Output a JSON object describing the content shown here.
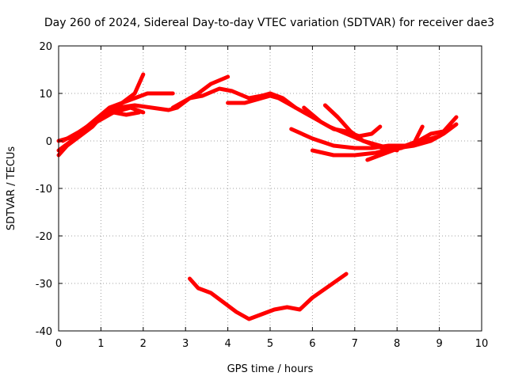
{
  "chart_data": {
    "type": "line",
    "title": "Day 260 of 2024, Sidereal Day-to-day VTEC variation (SDTVAR) for receiver dae3",
    "xlabel": "GPS time / hours",
    "ylabel": "SDTVAR / TECUs",
    "xlim": [
      0,
      10
    ],
    "ylim": [
      -40,
      20
    ],
    "xticks": [
      "0",
      "1",
      "2",
      "3",
      "4",
      "5",
      "6",
      "7",
      "8",
      "9",
      "10"
    ],
    "yticks": [
      "-40",
      "-30",
      "-20",
      "-10",
      "0",
      "10",
      "20"
    ],
    "grid": true,
    "legend": "none",
    "color": "#ff0000",
    "series": [
      {
        "x": [
          0,
          0.2,
          0.5,
          0.8,
          1.0,
          1.3,
          1.5
        ],
        "y": [
          -3,
          -1,
          1,
          3,
          5,
          6,
          7
        ]
      },
      {
        "x": [
          0,
          0.3,
          0.6,
          0.9,
          1.2,
          1.5,
          1.8,
          2.0
        ],
        "y": [
          -2,
          0,
          2,
          4,
          6,
          8,
          10,
          14
        ]
      },
      {
        "x": [
          0,
          0.4,
          0.8,
          1.2,
          1.5,
          1.8,
          2.1,
          2.4,
          2.7
        ],
        "y": [
          0,
          1,
          4,
          7,
          8,
          9,
          10,
          10,
          10
        ]
      },
      {
        "x": [
          0.1,
          0.5,
          1.0,
          1.4,
          1.8,
          2.2,
          2.6,
          2.8
        ],
        "y": [
          0,
          2,
          5,
          7,
          7.5,
          7,
          6.5,
          7
        ]
      },
      {
        "x": [
          0.5,
          0.9,
          1.3,
          1.7,
          2.0
        ],
        "y": [
          2,
          4,
          6,
          7,
          6
        ]
      },
      {
        "x": [
          1.3,
          1.6,
          1.9
        ],
        "y": [
          6,
          5.5,
          6
        ]
      },
      {
        "x": [
          2.7,
          3.0,
          3.3,
          3.6,
          4.0
        ],
        "y": [
          7,
          8.5,
          10,
          12,
          13.5
        ]
      },
      {
        "x": [
          2.8,
          3.1,
          3.4,
          3.8,
          4.1,
          4.5,
          4.8,
          5.0,
          5.2,
          5.4,
          5.6
        ],
        "y": [
          7,
          9,
          9.5,
          11,
          10.5,
          9,
          9.5,
          10,
          9,
          8,
          7
        ]
      },
      {
        "x": [
          4.0,
          4.4,
          4.8,
          5.0,
          5.2
        ],
        "y": [
          8,
          8,
          9,
          9.5,
          9
        ]
      },
      {
        "x": [
          5.0,
          5.3,
          5.6,
          6.0,
          6.4,
          6.8,
          7.2,
          7.6,
          8.0
        ],
        "y": [
          10,
          9,
          7,
          5,
          3,
          1.5,
          0,
          -1,
          -2
        ]
      },
      {
        "x": [
          5.5,
          6.0,
          6.5,
          7.0,
          7.4,
          7.8,
          8.2,
          8.6,
          9.0,
          9.3
        ],
        "y": [
          2.5,
          0.5,
          -1,
          -1.5,
          -1.5,
          -1,
          -1,
          0,
          1,
          3
        ]
      },
      {
        "x": [
          6.0,
          6.5,
          7.0,
          7.5,
          8.0,
          8.4,
          8.8,
          9.1,
          9.4
        ],
        "y": [
          -2,
          -3,
          -3,
          -2.5,
          -1.5,
          -1,
          0,
          1.5,
          3.5
        ]
      },
      {
        "x": [
          5.8,
          6.2,
          6.5,
          6.8,
          7.1,
          7.4,
          7.6
        ],
        "y": [
          7,
          4,
          2.5,
          2,
          1,
          1.5,
          3
        ]
      },
      {
        "x": [
          6.3,
          6.6,
          6.9,
          7.2,
          7.5,
          7.8,
          8.1,
          8.4,
          8.6
        ],
        "y": [
          7.5,
          5,
          2,
          0,
          -1,
          -2,
          -1.5,
          -0.5,
          3
        ]
      },
      {
        "x": [
          7.3,
          7.6,
          7.9,
          8.2,
          8.5,
          8.8,
          9.1,
          9.4
        ],
        "y": [
          -4,
          -3,
          -2,
          -1,
          0,
          1.5,
          2,
          5
        ]
      },
      {
        "x": [
          3.1,
          3.3,
          3.6,
          3.9,
          4.2,
          4.5,
          4.8,
          5.1,
          5.4,
          5.7,
          6.0,
          6.4,
          6.8
        ],
        "y": [
          -29,
          -31,
          -32,
          -34,
          -36,
          -37.5,
          -36.5,
          -35.5,
          -35,
          -35.5,
          -33,
          -30.5,
          -28
        ]
      }
    ]
  }
}
